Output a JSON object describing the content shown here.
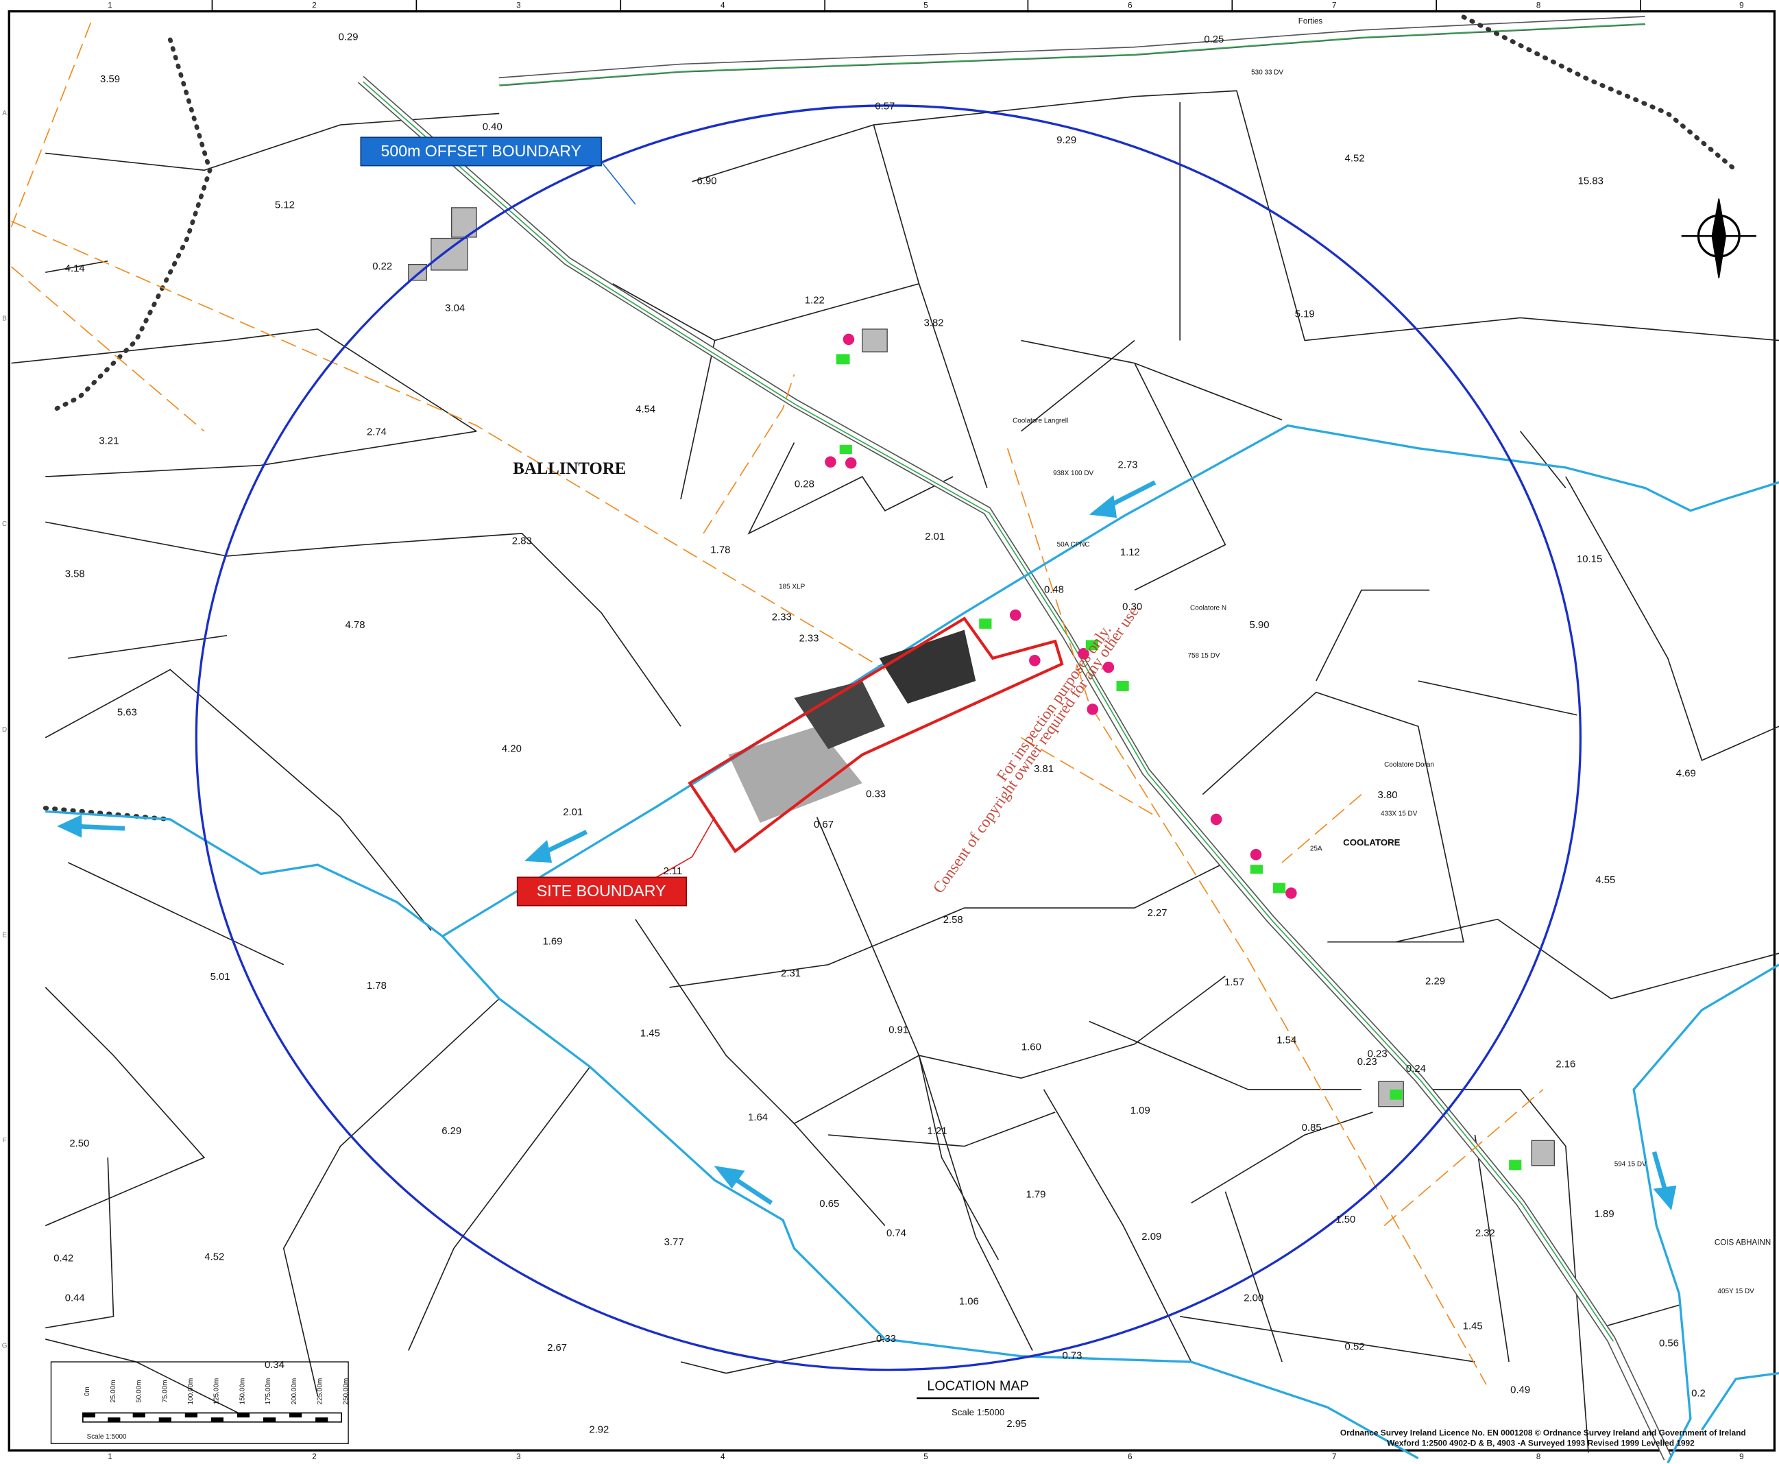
{
  "map": {
    "callouts": {
      "offset_boundary": "500m OFFSET BOUNDARY",
      "site_boundary": "SITE BOUNDARY"
    },
    "place_names": [
      "BALLINTORE",
      "COOLATORE",
      "Coolatore Langrell",
      "Coolatore N",
      "Coolatore Doran",
      "COIS ABHAINN",
      "Forties"
    ],
    "annotations": [
      "530 33 DV",
      "938X 100 DV",
      "758 15 DV",
      "433X 15 DV",
      "594 15 DV",
      "405Y 15 DV",
      "185 XLP",
      "50A CPNC",
      "25A"
    ],
    "parcel_areas": [
      "3.59",
      "0.29",
      "0.25",
      "0.40",
      "9.29",
      "4.52",
      "15.83",
      "6.90",
      "5.12",
      "4.14",
      "0.22",
      "3.04",
      "1.22",
      "3.82",
      "5.19",
      "4.54",
      "2.74",
      "3.21",
      "0.28",
      "2.73",
      "2.83",
      "2.01",
      "1.12",
      "1.78",
      "3.58",
      "10.15",
      "0.48",
      "4.78",
      "2.33",
      "2.33",
      "0.30",
      "5.90",
      "0.33",
      "0.67",
      "5.63",
      "4.20",
      "3.81",
      "3.80",
      "4.69",
      "2.01",
      "2.11",
      "4.55",
      "2.27",
      "2.58",
      "1.69",
      "1.78",
      "5.01",
      "2.31",
      "1.57",
      "2.29",
      "1.45",
      "0.91",
      "1.60",
      "1.54",
      "0.23",
      "0.24",
      "2.16",
      "1.64",
      "6.29",
      "1.09",
      "1.21",
      "0.85",
      "2.50",
      "1.79",
      "0.65",
      "0.74",
      "3.77",
      "2.09",
      "1.50",
      "2.32",
      "1.89",
      "0.42",
      "4.52",
      "0.44",
      "1.06",
      "2.00",
      "1.45",
      "0.33",
      "0.52",
      "0.56",
      "0.34",
      "2.67",
      "0.73",
      "2.92",
      "0.49",
      "2.95",
      "0.2",
      "0.57",
      "0.23"
    ],
    "grid_columns": [
      "1",
      "2",
      "3",
      "4",
      "5",
      "6",
      "7",
      "8",
      "9"
    ],
    "grid_rows": [
      "A",
      "B",
      "C",
      "D",
      "E",
      "F",
      "G"
    ],
    "title_block": {
      "title": "LOCATION MAP",
      "scale": "Scale 1:5000"
    },
    "scale_bar": {
      "labels": [
        "0m",
        "25.00m",
        "50.00m",
        "75.00m",
        "100.00m",
        "125.00m",
        "150.00m",
        "175.00m",
        "200.00m",
        "225.00m",
        "250.00m"
      ],
      "caption": "Scale 1:5000"
    },
    "licence": [
      "Ordnance Survey Ireland Licence No. EN 0001208 © Ordnance Survey Ireland and Government of Ireland",
      "Wexford 1:2500 4902-D & B, 4903 -A Surveyed 1993 Revised 1999 Levelled 1992"
    ],
    "watermark": [
      "For inspection purposes only.",
      "Consent of copyright owner required for any other use."
    ]
  }
}
